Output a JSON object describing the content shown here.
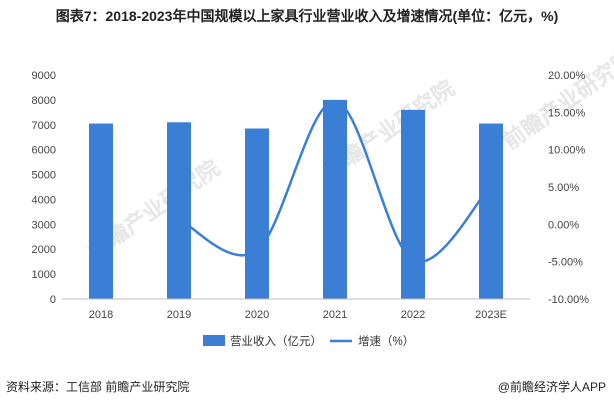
{
  "title": "图表7：2018-2023年中国规模以上家具行业营业收入及增速情况(单位：亿元，%)",
  "footer": {
    "source": "资料来源：工信部 前瞻产业研究院",
    "brand": "@前瞻经济学人APP"
  },
  "watermark": "前瞻产业研究院",
  "colors": {
    "bar": "#3a7fd5",
    "line": "#3a7fd5"
  },
  "chart_data": {
    "type": "bar",
    "categories": [
      "2018",
      "2019",
      "2020",
      "2021",
      "2022",
      "2023E"
    ],
    "series": [
      {
        "name": "营业收入（亿元）",
        "kind": "bar",
        "axis": "left",
        "values": [
          7050,
          7100,
          6850,
          8000,
          7600,
          7050
        ]
      },
      {
        "name": "增速（%）",
        "kind": "line",
        "axis": "right",
        "values": [
          null,
          0.7,
          -3.5,
          16.5,
          -4.8,
          5.2
        ]
      }
    ],
    "ylim_left": [
      0,
      9000
    ],
    "yticks_left": [
      "0",
      "1000",
      "2000",
      "3000",
      "4000",
      "5000",
      "6000",
      "7000",
      "8000",
      "9000"
    ],
    "ylim_right": [
      -10,
      20
    ],
    "yticks_right": [
      "-10.00%",
      "-5.00%",
      "0.00%",
      "5.00%",
      "10.00%",
      "15.00%",
      "20.00%"
    ],
    "legend_position": "bottom",
    "grid": false
  }
}
